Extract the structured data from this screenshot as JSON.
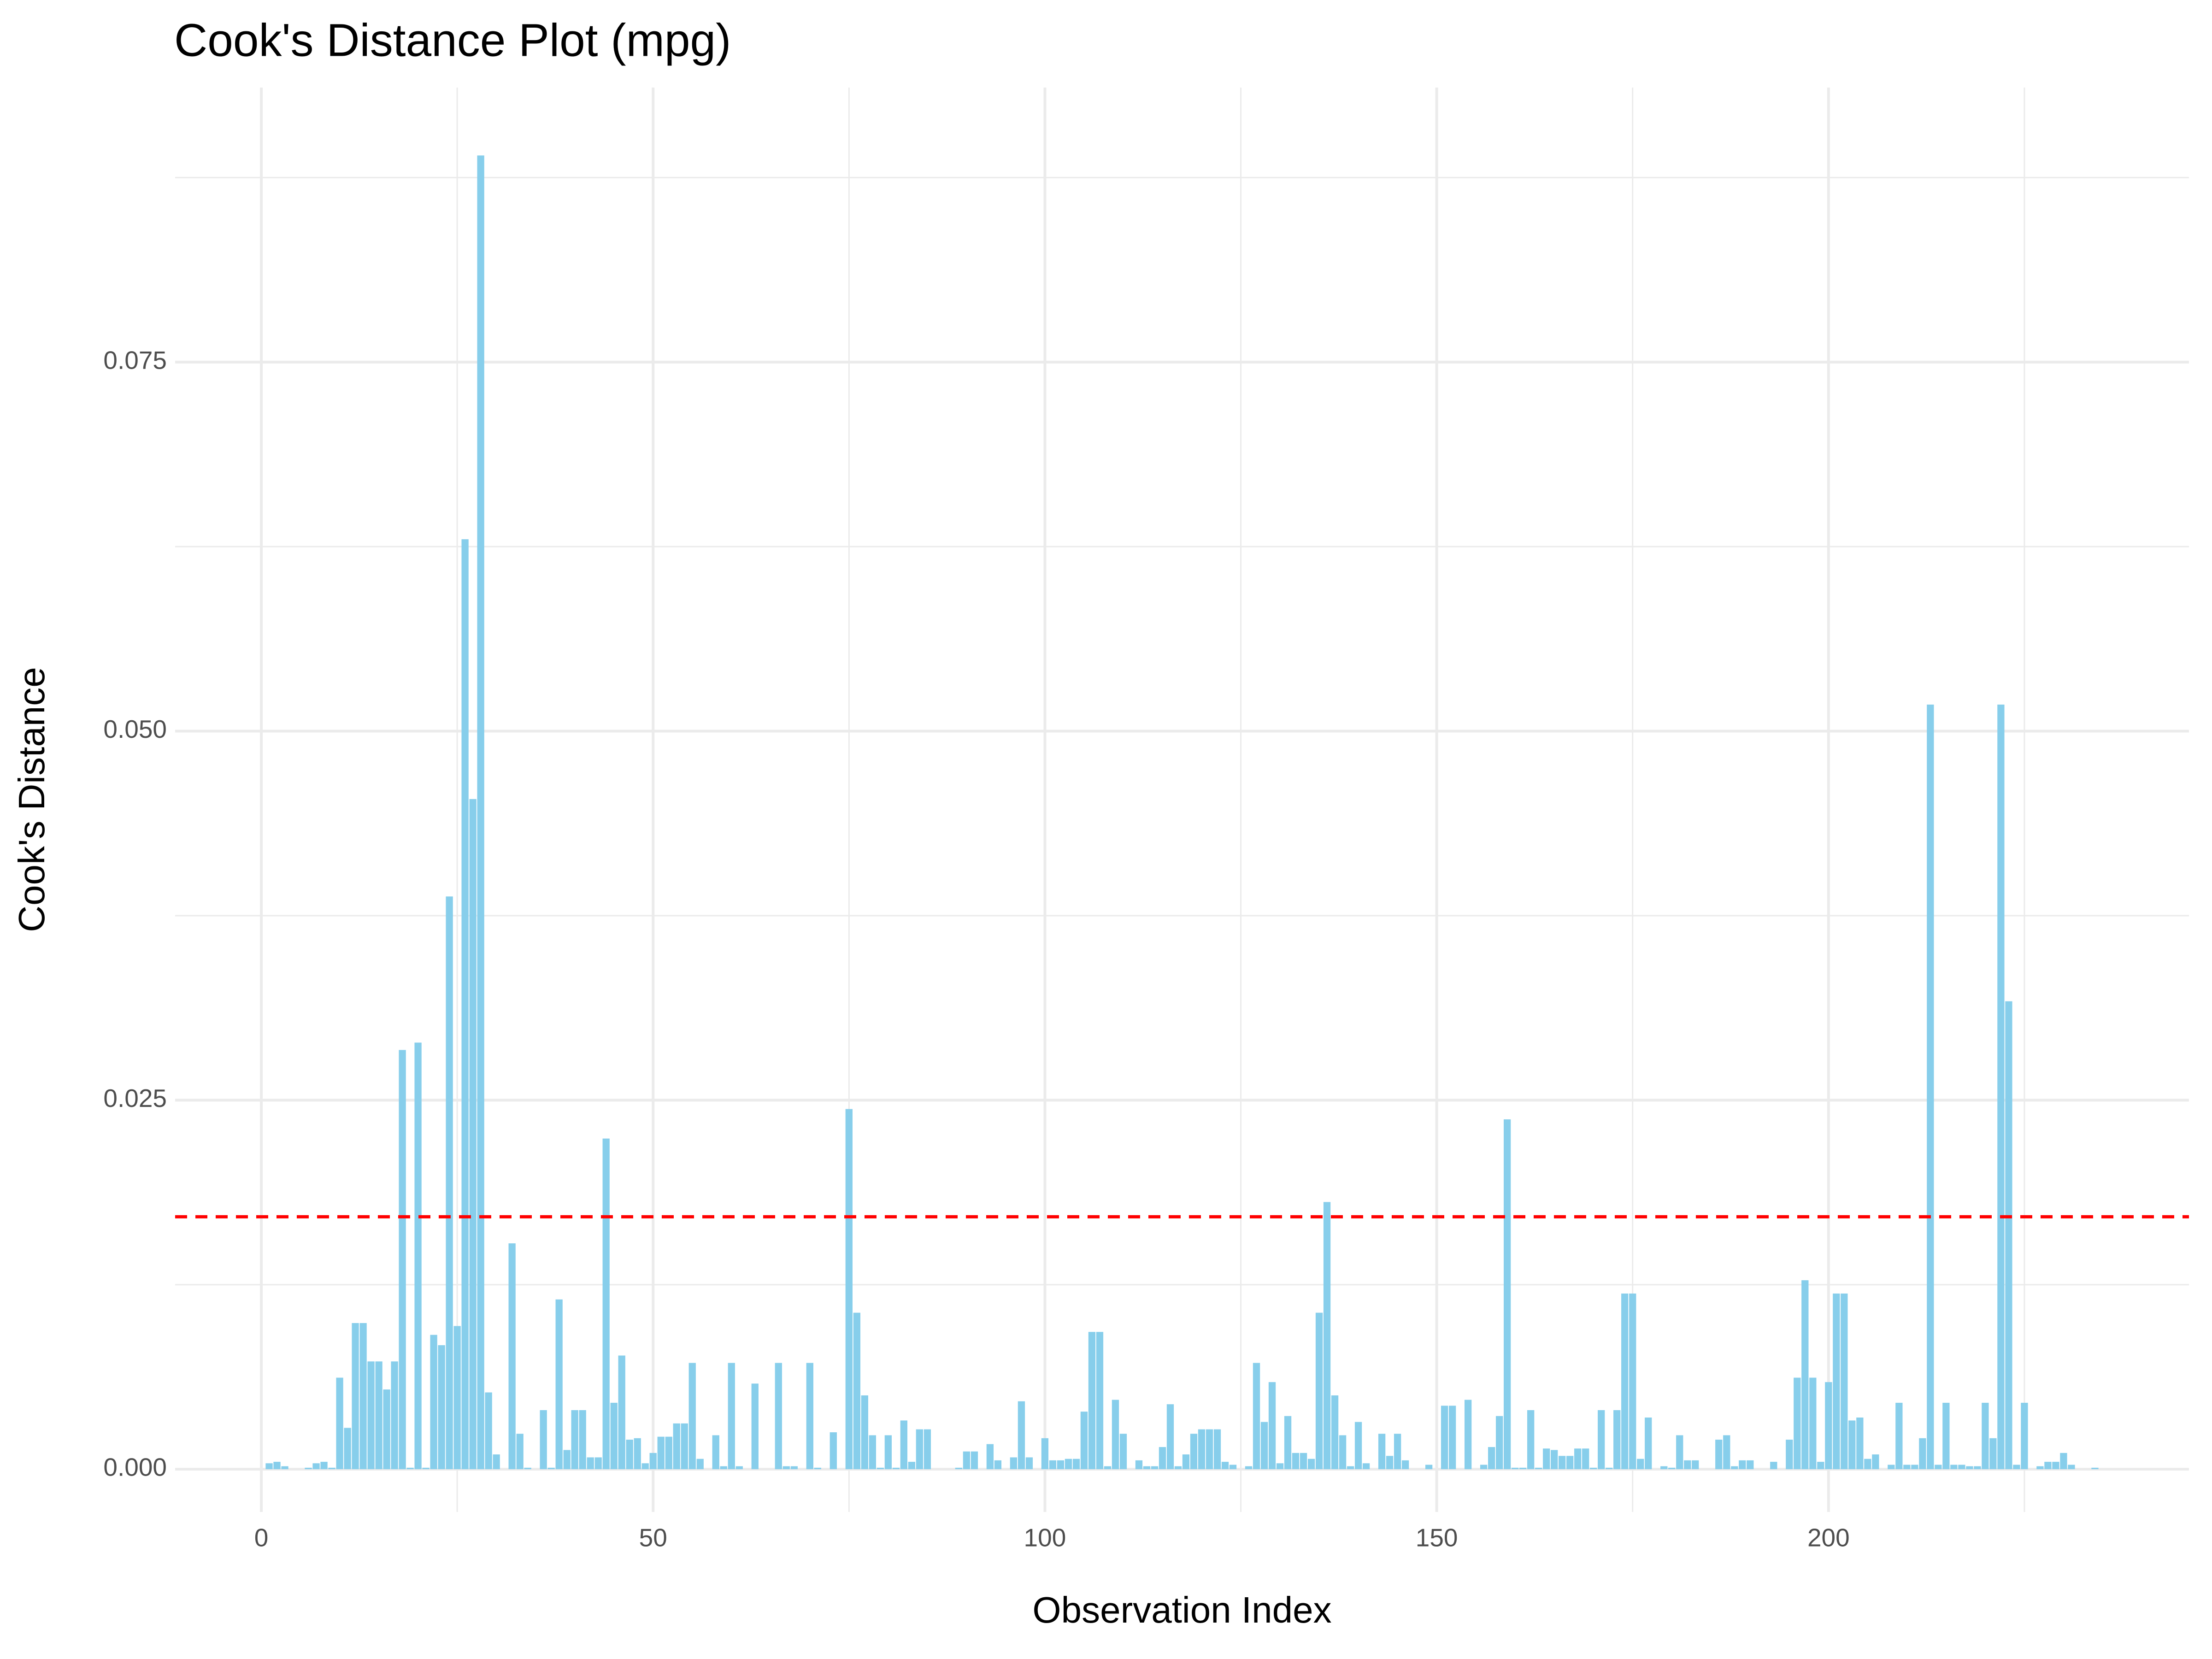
{
  "chart_data": {
    "type": "bar",
    "title": "Cook's Distance Plot (mpg)",
    "xlabel": "Observation Index",
    "ylabel": "Cook's Distance",
    "x": [
      1,
      2,
      3,
      4,
      5,
      6,
      7,
      8,
      9,
      10,
      11,
      12,
      13,
      14,
      15,
      16,
      17,
      18,
      19,
      20,
      21,
      22,
      23,
      24,
      25,
      26,
      27,
      28,
      29,
      30,
      31,
      32,
      33,
      34,
      35,
      36,
      37,
      38,
      39,
      40,
      41,
      42,
      43,
      44,
      45,
      46,
      47,
      48,
      49,
      50,
      51,
      52,
      53,
      54,
      55,
      56,
      57,
      58,
      59,
      60,
      61,
      62,
      63,
      64,
      65,
      66,
      67,
      68,
      69,
      70,
      71,
      72,
      73,
      74,
      75,
      76,
      77,
      78,
      79,
      80,
      81,
      82,
      83,
      84,
      85,
      86,
      87,
      88,
      89,
      90,
      91,
      92,
      93,
      94,
      95,
      96,
      97,
      98,
      99,
      100,
      101,
      102,
      103,
      104,
      105,
      106,
      107,
      108,
      109,
      110,
      111,
      112,
      113,
      114,
      115,
      116,
      117,
      118,
      119,
      120,
      121,
      122,
      123,
      124,
      125,
      126,
      127,
      128,
      129,
      130,
      131,
      132,
      133,
      134,
      135,
      136,
      137,
      138,
      139,
      140,
      141,
      142,
      143,
      144,
      145,
      146,
      147,
      148,
      149,
      150,
      151,
      152,
      153,
      154,
      155,
      156,
      157,
      158,
      159,
      160,
      161,
      162,
      163,
      164,
      165,
      166,
      167,
      168,
      169,
      170,
      171,
      172,
      173,
      174,
      175,
      176,
      177,
      178,
      179,
      180,
      181,
      182,
      183,
      184,
      185,
      186,
      187,
      188,
      189,
      190,
      191,
      192,
      193,
      194,
      195,
      196,
      197,
      198,
      199,
      200,
      201,
      202,
      203,
      204,
      205,
      206,
      207,
      208,
      209,
      210,
      211,
      212,
      213,
      214,
      215,
      216,
      217,
      218,
      219,
      220,
      221,
      222,
      223,
      224,
      225,
      226,
      227,
      228,
      229,
      230,
      231,
      232,
      233,
      234
    ],
    "values": [
      0.0004,
      0.0005,
      0.0002,
      0,
      0,
      0.0001,
      0.0004,
      0.0005,
      0.0001,
      0.0062,
      0.0028,
      0.0099,
      0.0099,
      0.0073,
      0.0073,
      0.0054,
      0.0073,
      0.0284,
      0.0001,
      0.0289,
      0.0001,
      0.0091,
      0.0084,
      0.0388,
      0.0097,
      0.063,
      0.0454,
      0.089,
      0.0052,
      0.001,
      0,
      0.0153,
      0.0024,
      0.0001,
      0,
      0.004,
      0.0001,
      0.0115,
      0.0013,
      0.004,
      0.004,
      0.0008,
      0.0008,
      0.0224,
      0.0045,
      0.0077,
      0.002,
      0.0021,
      0.0004,
      0.0011,
      0.0022,
      0.0022,
      0.0031,
      0.0031,
      0.0072,
      0.0007,
      0,
      0.0023,
      0.0002,
      0.0072,
      0.0002,
      0,
      0.0058,
      0,
      0,
      0.0072,
      0.0002,
      0.0002,
      0,
      0.0072,
      0.0001,
      0,
      0.0025,
      0,
      0.0244,
      0.0106,
      0.005,
      0.0023,
      0.0001,
      0.0023,
      0.0001,
      0.0033,
      0.0005,
      0.0027,
      0.0027,
      0,
      0,
      0,
      0.0001,
      0.0012,
      0.0012,
      0,
      0.0017,
      0.0006,
      0,
      0.0008,
      0.0046,
      0.0008,
      0,
      0.0021,
      0.0006,
      0.0006,
      0.0007,
      0.0007,
      0.0039,
      0.0093,
      0.0093,
      0.0002,
      0.0047,
      0.0024,
      0,
      0.0006,
      0.0002,
      0.0002,
      0.0015,
      0.0044,
      0.0002,
      0.001,
      0.0024,
      0.0027,
      0.0027,
      0.0027,
      0.0005,
      0.0003,
      0,
      0.0002,
      0.0072,
      0.0032,
      0.0059,
      0.0004,
      0.0036,
      0.0011,
      0.0011,
      0.0007,
      0.0106,
      0.0181,
      0.005,
      0.0023,
      0.0002,
      0.0032,
      0.0004,
      0,
      0.0024,
      0.0009,
      0.0024,
      0.0006,
      0,
      0,
      0.0003,
      0,
      0.0043,
      0.0043,
      0,
      0.0047,
      0,
      0.0003,
      0.0015,
      0.0036,
      0.0237,
      0.0001,
      0.0001,
      0.004,
      0.0001,
      0.0014,
      0.0013,
      0.0009,
      0.0009,
      0.0014,
      0.0014,
      0.0001,
      0.004,
      0.0001,
      0.004,
      0.0119,
      0.0119,
      0.0007,
      0.0035,
      0,
      0.0002,
      0.0001,
      0.0023,
      0.0006,
      0.0006,
      0,
      0,
      0.002,
      0.0023,
      0.0002,
      0.0006,
      0.0006,
      0,
      0,
      0.0005,
      0,
      0.002,
      0.0062,
      0.0128,
      0.0062,
      0.0005,
      0.0059,
      0.0119,
      0.0119,
      0.0033,
      0.0035,
      0.0007,
      0.001,
      0,
      0.0003,
      0.0045,
      0.0003,
      0.0003,
      0.0021,
      0.0518,
      0.0003,
      0.0045,
      0.0003,
      0.0003,
      0.0002,
      0.0002,
      0.0045,
      0.0021,
      0.0518,
      0.0317,
      0.0003,
      0.0045,
      0,
      0.0002,
      0.0005,
      0.0005,
      0.0011,
      0.0003,
      0,
      0,
      0.0001
    ],
    "color": "#87ceeb",
    "threshold": 0.0171,
    "threshold_color": "#ff0000",
    "xlim": [
      -11,
      246
    ],
    "xticks": [
      0,
      50,
      100,
      150,
      200
    ],
    "xminor": [
      25,
      75,
      125,
      175,
      225
    ],
    "ylim": [
      -0.0029,
      0.0936
    ],
    "yticks": [
      {
        "value": 0,
        "label": "0.000"
      },
      0.025,
      {
        "value": 0.05,
        "label": "0.050"
      },
      0.075
    ],
    "yminor": [
      0.0125,
      0.0375,
      0.0625,
      0.0875
    ],
    "grid": true
  }
}
